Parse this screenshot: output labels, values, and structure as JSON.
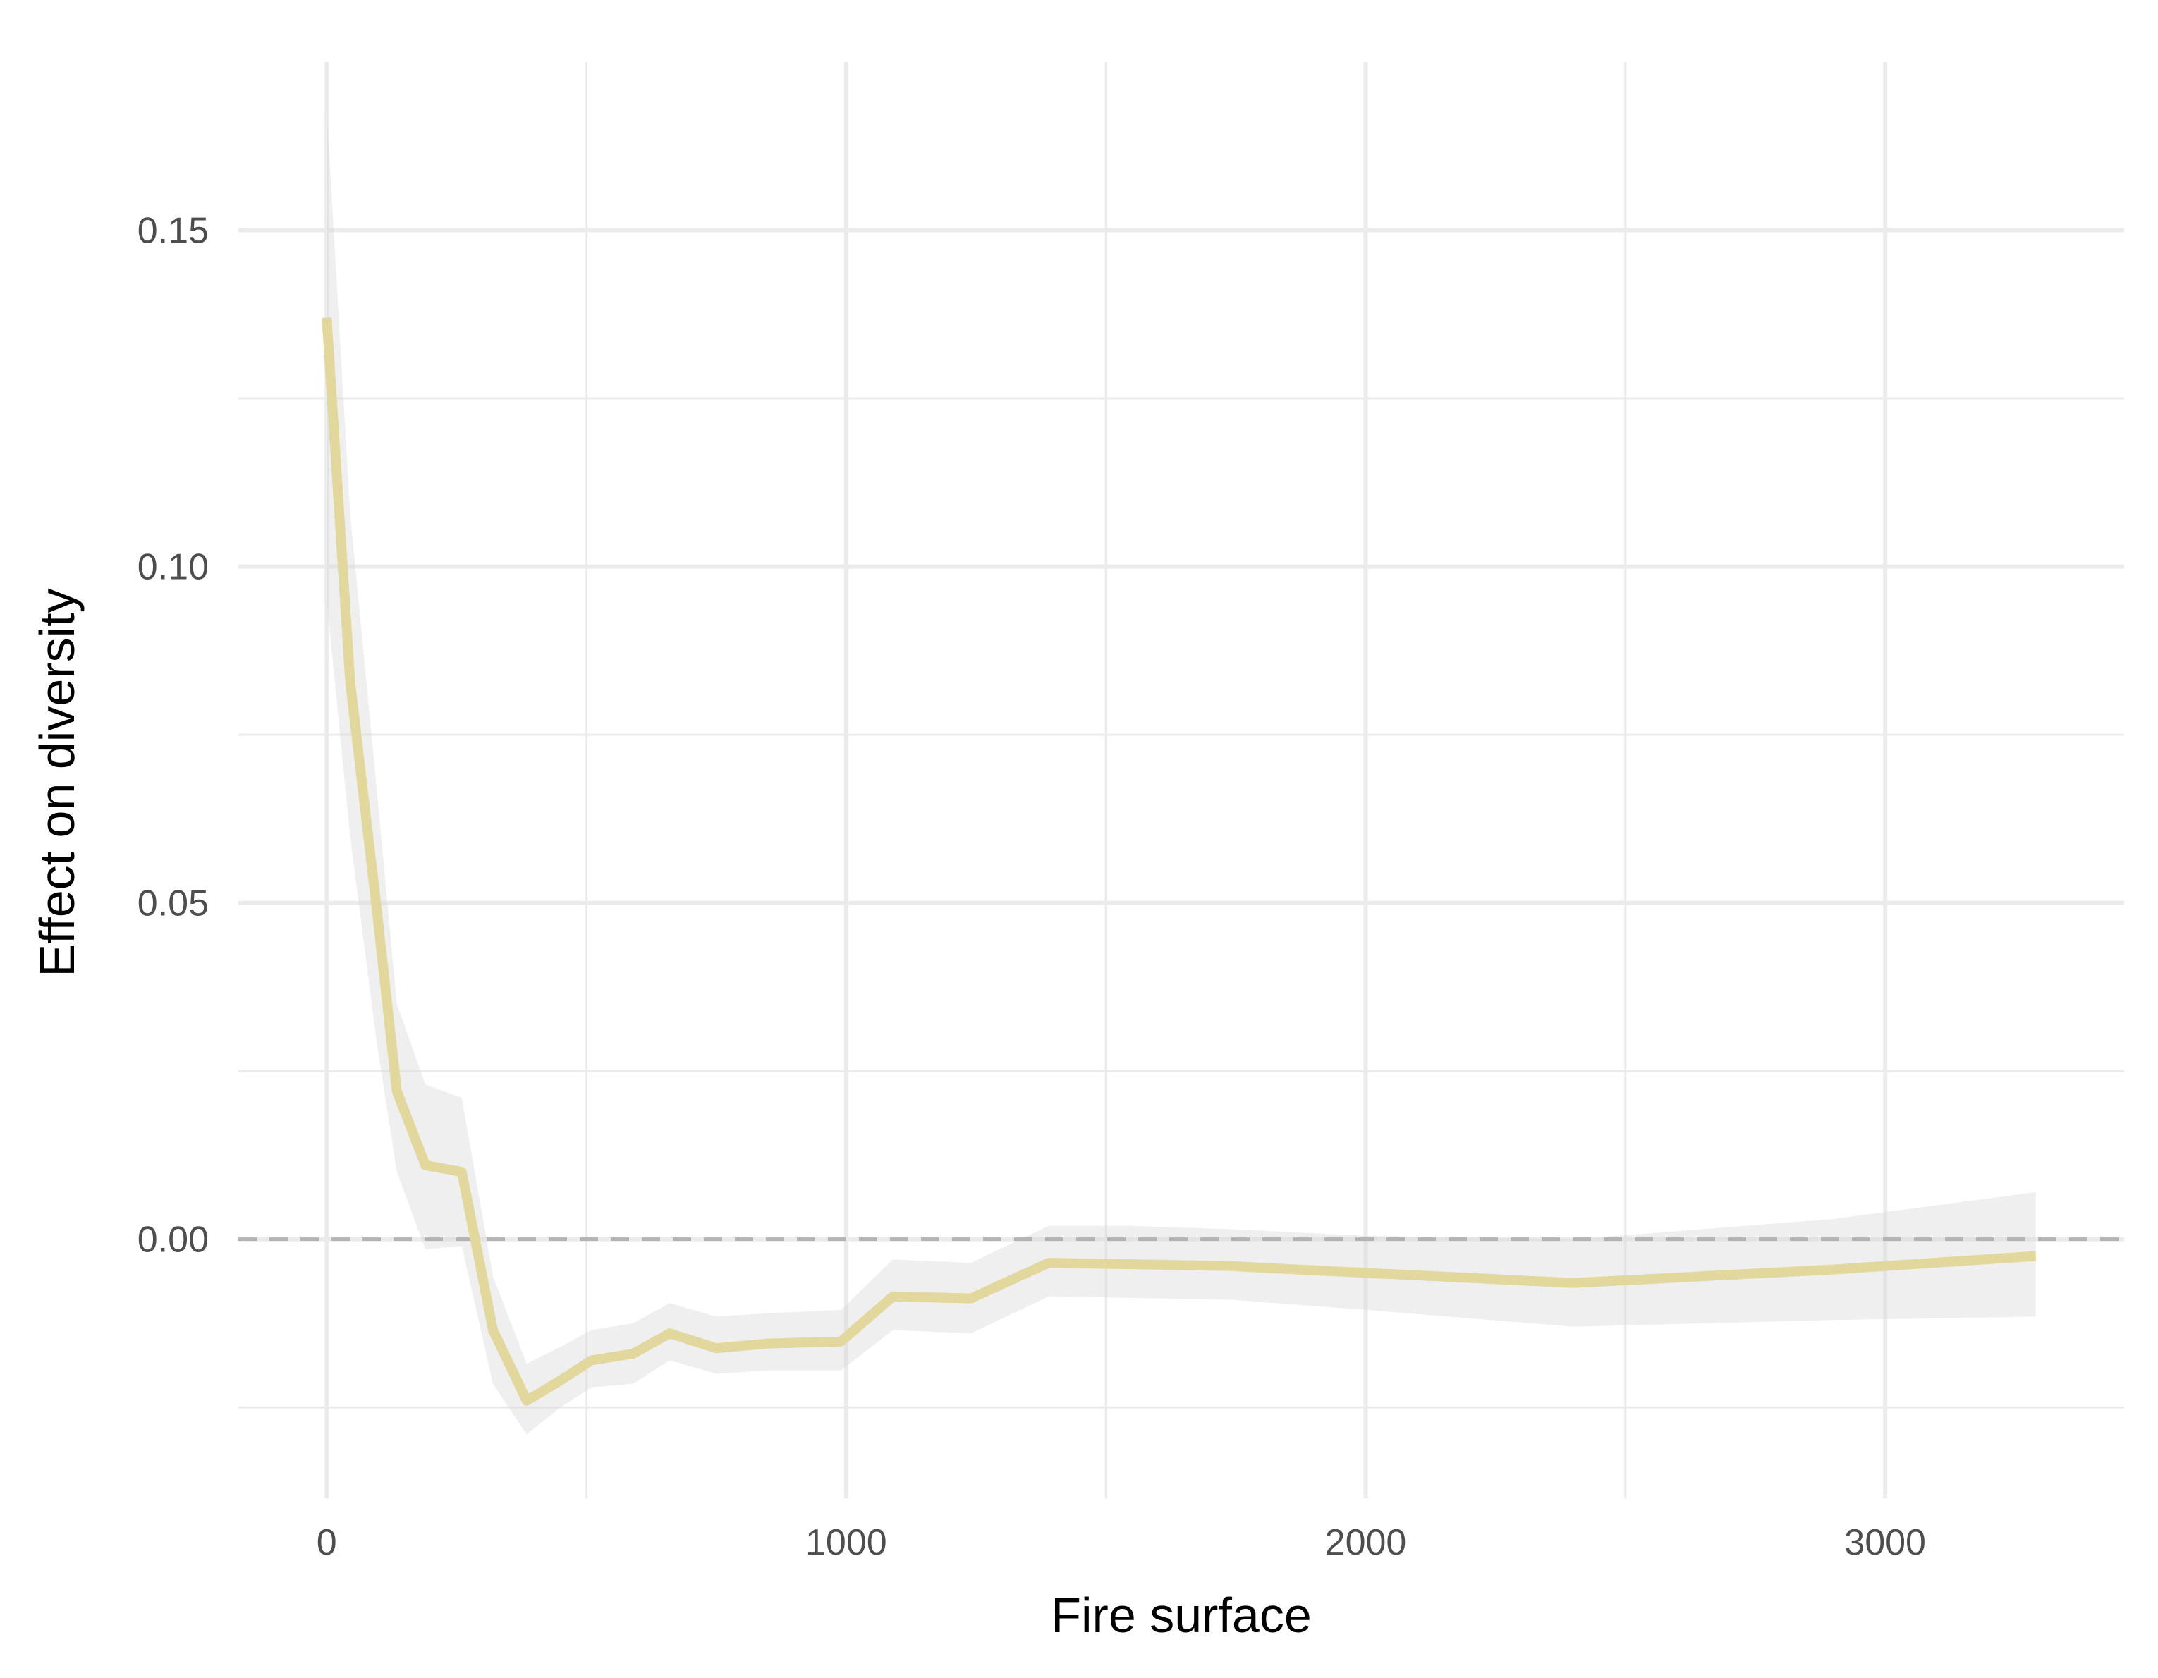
{
  "chart_data": {
    "type": "line",
    "xlabel": "Fire surface",
    "ylabel": "Effect on diversity",
    "xlim": [
      -170,
      3460
    ],
    "ylim": [
      -0.0385,
      0.175
    ],
    "x_ticks": [
      0,
      1000,
      2000,
      3000
    ],
    "x_tick_labels": [
      "0",
      "1000",
      "2000",
      "3000"
    ],
    "y_ticks": [
      0.0,
      0.05,
      0.1,
      0.15
    ],
    "y_tick_labels": [
      "0.00",
      "0.05",
      "0.10",
      "0.15"
    ],
    "grid": true,
    "reference_line": {
      "y": 0,
      "style": "dashed",
      "color": "#b3b3b3"
    },
    "line_color": "#e2d79c",
    "band_color": "#d9d9d9",
    "series": [
      {
        "x": [
          0,
          45,
          95,
          135,
          190,
          260,
          320,
          385,
          450,
          510,
          590,
          660,
          750,
          850,
          990,
          1090,
          1240,
          1390,
          1540,
          1740,
          2000,
          2400,
          2900,
          3290
        ],
        "y": [
          0.137,
          0.083,
          0.05,
          0.022,
          0.011,
          0.01,
          -0.0135,
          -0.024,
          -0.021,
          -0.018,
          -0.017,
          -0.014,
          -0.0162,
          -0.0155,
          -0.0152,
          -0.0085,
          -0.0088,
          -0.0035,
          -0.0037,
          -0.004,
          -0.005,
          -0.0065,
          -0.0045,
          -0.0025
        ],
        "lower": [
          0.095,
          0.06,
          0.03,
          0.01,
          -0.0015,
          -0.001,
          -0.0215,
          -0.029,
          -0.025,
          -0.022,
          -0.0215,
          -0.018,
          -0.02,
          -0.0195,
          -0.0195,
          -0.0135,
          -0.014,
          -0.0085,
          -0.0087,
          -0.009,
          -0.0105,
          -0.013,
          -0.012,
          -0.0115
        ],
        "upper": [
          0.168,
          0.108,
          0.068,
          0.035,
          0.023,
          0.021,
          -0.0055,
          -0.0185,
          -0.016,
          -0.0135,
          -0.0125,
          -0.0095,
          -0.0115,
          -0.011,
          -0.0105,
          -0.003,
          -0.0035,
          0.002,
          0.002,
          0.0015,
          0.0005,
          0.0,
          0.003,
          0.007
        ]
      }
    ]
  }
}
